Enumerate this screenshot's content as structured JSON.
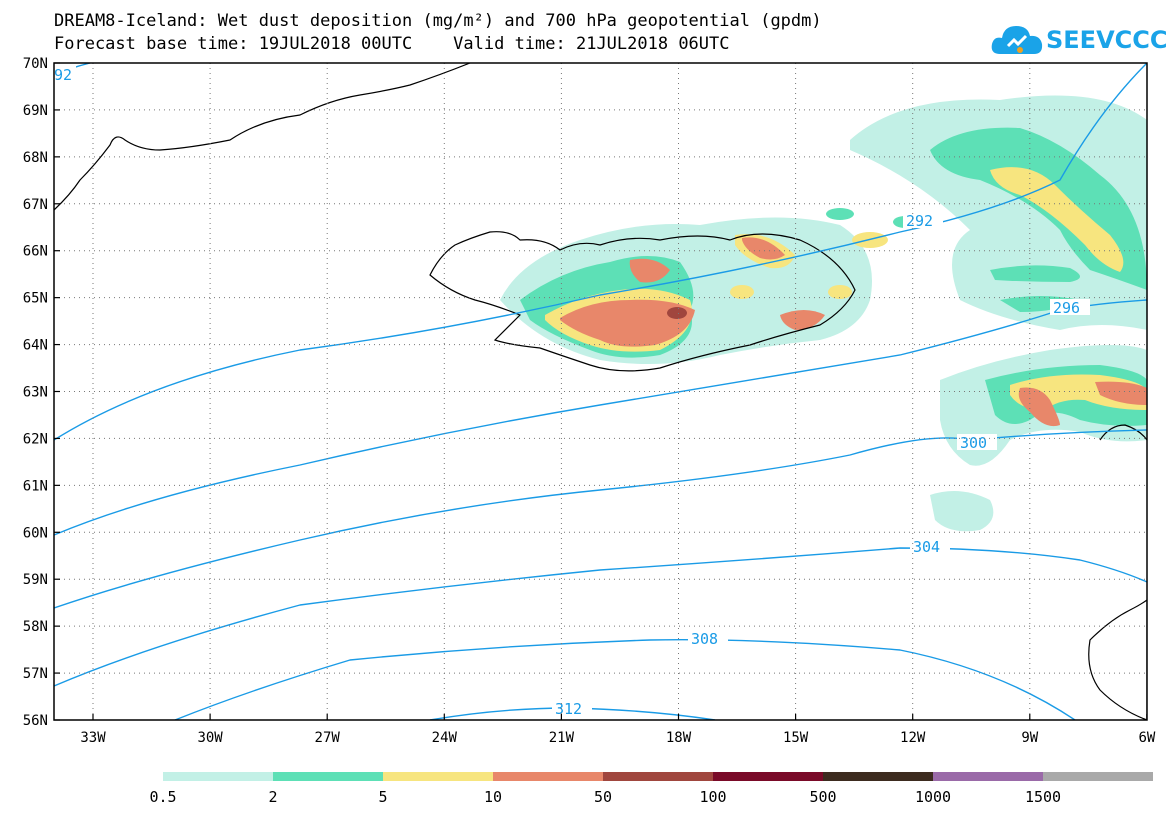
{
  "title_line1": "DREAM8-Iceland: Wet dust deposition (mg/m²) and 700 hPa geopotential (gpdm)",
  "title_line2": "Forecast base time: 19JUL2018 00UTC    Valid time: 21JUL2018 06UTC",
  "logo_text": "SEEVCCC",
  "logo_icon": "cloud-icon",
  "map": {
    "lon_ticks": [
      "33W",
      "30W",
      "27W",
      "24W",
      "21W",
      "18W",
      "15W",
      "12W",
      "9W",
      "6W"
    ],
    "lat_ticks": [
      "70N",
      "69N",
      "68N",
      "67N",
      "66N",
      "65N",
      "64N",
      "63N",
      "62N",
      "61N",
      "60N",
      "59N",
      "58N",
      "57N",
      "56N"
    ],
    "contour_labels": [
      "92",
      "292",
      "296",
      "300",
      "304",
      "308",
      "312"
    ],
    "contour_color": "#1a9be6"
  },
  "legend": {
    "levels": [
      "0.5",
      "2",
      "5",
      "10",
      "50",
      "100",
      "500",
      "1000",
      "1500"
    ],
    "colors": [
      "#c2f0e6",
      "#5de0b6",
      "#f7e57f",
      "#e8876a",
      "#a0463e",
      "#7a0a28",
      "#3d2b1f",
      "#9a6aa8",
      "#a9a9a9"
    ]
  }
}
